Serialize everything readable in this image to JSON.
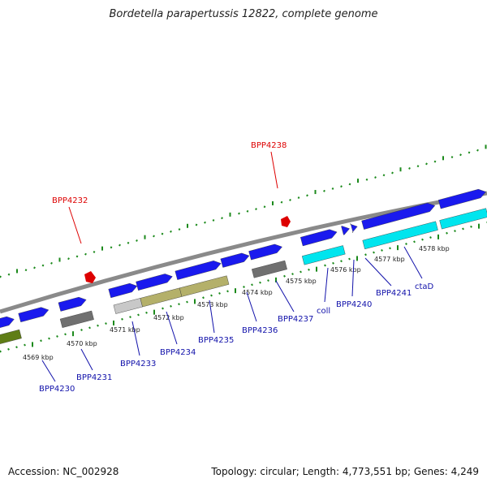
{
  "header": {
    "title": "Bordetella parapertussis 12822, complete genome"
  },
  "footer": {
    "accession": "Accession: NC_002928",
    "stats": "Topology: circular; Length: 4,773,551 bp; Genes: 4,249"
  },
  "scale_labels": [
    "4569 kbp",
    "4570 kbp",
    "4571 kbp",
    "4572 kbp",
    "4573 kbp",
    "4574 kbp",
    "4575 kbp",
    "4576 kbp",
    "4577 kbp",
    "4578 kbp"
  ],
  "gene_labels": [
    "BPP4230",
    "BPP4231",
    "BPP4233",
    "BPP4234",
    "BPP4235",
    "BPP4236",
    "BPP4237",
    "coll",
    "BPP4240",
    "BPP4241",
    "ctaD"
  ],
  "highlight_labels": [
    "BPP4232",
    "BPP4238"
  ],
  "colors": {
    "strand_forward": "#1a1aee",
    "rrna_cyan": "#00e5ee",
    "olive": "#b4b06a",
    "dark_green": "#5f7d16",
    "gray": "#707070",
    "light_gray": "#c8c8c8",
    "highlight_red": "#dd0000",
    "label_blue": "#1111aa",
    "backbone": "#8a8a8a",
    "tick_green": "#1c8a1c"
  }
}
